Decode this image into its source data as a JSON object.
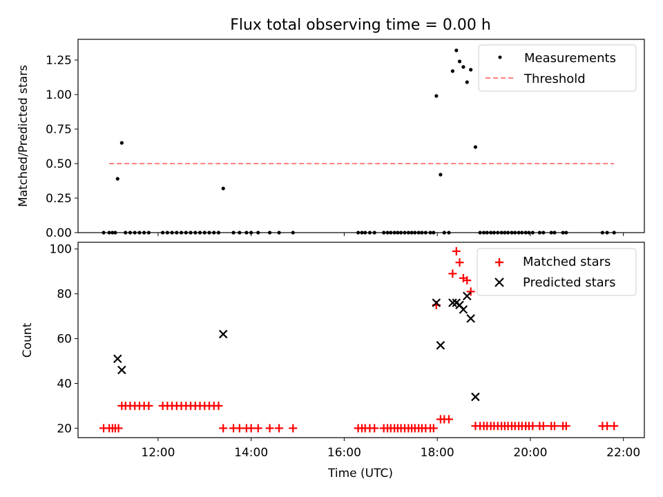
{
  "title": "Flux total observing time = 0.00 h",
  "xlabel": "Time (UTC)",
  "colors": {
    "matched": "#ff0000",
    "predicted": "#000000",
    "threshold": "#ff7f7f",
    "measurement": "#000000"
  },
  "chart_data": [
    {
      "type": "scatter",
      "ylabel": "Matched/Predicted stars",
      "ylim": [
        0,
        1.4
      ],
      "yticks": [
        0,
        0.25,
        0.5,
        0.75,
        1.0,
        1.25
      ],
      "yticklabels": [
        "0.00",
        "0.25",
        "0.50",
        "0.75",
        "1.00",
        "1.25"
      ],
      "xlim_hours": [
        10.28,
        22.45
      ],
      "legend": {
        "position": "top-right",
        "entries": [
          "Measurements",
          "Threshold"
        ]
      },
      "threshold": {
        "name": "Threshold",
        "value": 0.5,
        "x_range_hours": [
          10.95,
          21.8
        ]
      },
      "measurements": {
        "name": "Measurements",
        "points": [
          {
            "x": 10.83,
            "y": 0
          },
          {
            "x": 10.95,
            "y": 0
          },
          {
            "x": 11.02,
            "y": 0
          },
          {
            "x": 11.08,
            "y": 0
          },
          {
            "x": 11.13,
            "y": 0.39
          },
          {
            "x": 11.22,
            "y": 0.65
          },
          {
            "x": 11.3,
            "y": 0
          },
          {
            "x": 11.4,
            "y": 0
          },
          {
            "x": 11.5,
            "y": 0
          },
          {
            "x": 11.6,
            "y": 0
          },
          {
            "x": 11.7,
            "y": 0
          },
          {
            "x": 11.8,
            "y": 0
          },
          {
            "x": 12.1,
            "y": 0
          },
          {
            "x": 12.2,
            "y": 0
          },
          {
            "x": 12.3,
            "y": 0
          },
          {
            "x": 12.4,
            "y": 0
          },
          {
            "x": 12.5,
            "y": 0
          },
          {
            "x": 12.6,
            "y": 0
          },
          {
            "x": 12.7,
            "y": 0
          },
          {
            "x": 12.8,
            "y": 0
          },
          {
            "x": 12.9,
            "y": 0
          },
          {
            "x": 13.0,
            "y": 0
          },
          {
            "x": 13.1,
            "y": 0
          },
          {
            "x": 13.2,
            "y": 0
          },
          {
            "x": 13.3,
            "y": 0
          },
          {
            "x": 13.4,
            "y": 0.32
          },
          {
            "x": 13.62,
            "y": 0
          },
          {
            "x": 13.75,
            "y": 0
          },
          {
            "x": 13.9,
            "y": 0
          },
          {
            "x": 14.0,
            "y": 0
          },
          {
            "x": 14.15,
            "y": 0
          },
          {
            "x": 14.4,
            "y": 0
          },
          {
            "x": 14.6,
            "y": 0
          },
          {
            "x": 14.9,
            "y": 0
          },
          {
            "x": 16.3,
            "y": 0
          },
          {
            "x": 16.38,
            "y": 0
          },
          {
            "x": 16.45,
            "y": 0
          },
          {
            "x": 16.55,
            "y": 0
          },
          {
            "x": 16.65,
            "y": 0
          },
          {
            "x": 16.85,
            "y": 0
          },
          {
            "x": 16.93,
            "y": 0
          },
          {
            "x": 17.0,
            "y": 0
          },
          {
            "x": 17.08,
            "y": 0
          },
          {
            "x": 17.15,
            "y": 0
          },
          {
            "x": 17.22,
            "y": 0
          },
          {
            "x": 17.3,
            "y": 0
          },
          {
            "x": 17.38,
            "y": 0
          },
          {
            "x": 17.45,
            "y": 0
          },
          {
            "x": 17.52,
            "y": 0
          },
          {
            "x": 17.6,
            "y": 0
          },
          {
            "x": 17.67,
            "y": 0
          },
          {
            "x": 17.75,
            "y": 0
          },
          {
            "x": 17.85,
            "y": 0
          },
          {
            "x": 17.92,
            "y": 0
          },
          {
            "x": 17.98,
            "y": 0.99
          },
          {
            "x": 18.07,
            "y": 0.42
          },
          {
            "x": 18.15,
            "y": 0
          },
          {
            "x": 18.25,
            "y": 0
          },
          {
            "x": 18.33,
            "y": 1.17
          },
          {
            "x": 18.41,
            "y": 1.32
          },
          {
            "x": 18.48,
            "y": 1.24
          },
          {
            "x": 18.56,
            "y": 1.2
          },
          {
            "x": 18.64,
            "y": 1.09
          },
          {
            "x": 18.72,
            "y": 1.18
          },
          {
            "x": 18.82,
            "y": 0.62
          },
          {
            "x": 18.92,
            "y": 0
          },
          {
            "x": 19.0,
            "y": 0
          },
          {
            "x": 19.07,
            "y": 0
          },
          {
            "x": 19.15,
            "y": 0
          },
          {
            "x": 19.22,
            "y": 0
          },
          {
            "x": 19.3,
            "y": 0
          },
          {
            "x": 19.38,
            "y": 0
          },
          {
            "x": 19.45,
            "y": 0
          },
          {
            "x": 19.52,
            "y": 0
          },
          {
            "x": 19.6,
            "y": 0
          },
          {
            "x": 19.67,
            "y": 0
          },
          {
            "x": 19.75,
            "y": 0
          },
          {
            "x": 19.82,
            "y": 0
          },
          {
            "x": 19.9,
            "y": 0
          },
          {
            "x": 19.97,
            "y": 0
          },
          {
            "x": 20.05,
            "y": 0
          },
          {
            "x": 20.2,
            "y": 0
          },
          {
            "x": 20.28,
            "y": 0
          },
          {
            "x": 20.45,
            "y": 0
          },
          {
            "x": 20.52,
            "y": 0
          },
          {
            "x": 20.7,
            "y": 0
          },
          {
            "x": 20.77,
            "y": 0
          },
          {
            "x": 21.55,
            "y": 0
          },
          {
            "x": 21.65,
            "y": 0
          },
          {
            "x": 21.8,
            "y": 0
          }
        ]
      }
    },
    {
      "type": "scatter",
      "ylabel": "Count",
      "ylim": [
        15.8,
        103
      ],
      "yticks": [
        20,
        40,
        60,
        80,
        100
      ],
      "yticklabels": [
        "20",
        "40",
        "60",
        "80",
        "100"
      ],
      "xlim_hours": [
        10.28,
        22.45
      ],
      "xticks_hours": [
        12,
        14,
        16,
        18,
        20,
        22
      ],
      "xticklabels": [
        "12:00",
        "14:00",
        "16:00",
        "18:00",
        "20:00",
        "22:00"
      ],
      "legend": {
        "position": "top-right",
        "entries": [
          "Matched stars",
          "Predicted stars"
        ]
      },
      "series": [
        {
          "name": "Matched stars",
          "marker": "plus",
          "points": [
            {
              "x": 10.83,
              "y": 20
            },
            {
              "x": 10.95,
              "y": 20
            },
            {
              "x": 11.02,
              "y": 20
            },
            {
              "x": 11.08,
              "y": 20
            },
            {
              "x": 11.15,
              "y": 20
            },
            {
              "x": 11.22,
              "y": 30
            },
            {
              "x": 11.3,
              "y": 30
            },
            {
              "x": 11.4,
              "y": 30
            },
            {
              "x": 11.5,
              "y": 30
            },
            {
              "x": 11.6,
              "y": 30
            },
            {
              "x": 11.7,
              "y": 30
            },
            {
              "x": 11.8,
              "y": 30
            },
            {
              "x": 12.1,
              "y": 30
            },
            {
              "x": 12.2,
              "y": 30
            },
            {
              "x": 12.3,
              "y": 30
            },
            {
              "x": 12.4,
              "y": 30
            },
            {
              "x": 12.5,
              "y": 30
            },
            {
              "x": 12.6,
              "y": 30
            },
            {
              "x": 12.7,
              "y": 30
            },
            {
              "x": 12.8,
              "y": 30
            },
            {
              "x": 12.9,
              "y": 30
            },
            {
              "x": 13.0,
              "y": 30
            },
            {
              "x": 13.1,
              "y": 30
            },
            {
              "x": 13.2,
              "y": 30
            },
            {
              "x": 13.3,
              "y": 30
            },
            {
              "x": 13.4,
              "y": 20
            },
            {
              "x": 13.62,
              "y": 20
            },
            {
              "x": 13.75,
              "y": 20
            },
            {
              "x": 13.9,
              "y": 20
            },
            {
              "x": 14.0,
              "y": 20
            },
            {
              "x": 14.15,
              "y": 20
            },
            {
              "x": 14.4,
              "y": 20
            },
            {
              "x": 14.6,
              "y": 20
            },
            {
              "x": 14.9,
              "y": 20
            },
            {
              "x": 16.3,
              "y": 20
            },
            {
              "x": 16.38,
              "y": 20
            },
            {
              "x": 16.45,
              "y": 20
            },
            {
              "x": 16.55,
              "y": 20
            },
            {
              "x": 16.65,
              "y": 20
            },
            {
              "x": 16.85,
              "y": 20
            },
            {
              "x": 16.93,
              "y": 20
            },
            {
              "x": 17.0,
              "y": 20
            },
            {
              "x": 17.08,
              "y": 20
            },
            {
              "x": 17.15,
              "y": 20
            },
            {
              "x": 17.22,
              "y": 20
            },
            {
              "x": 17.3,
              "y": 20
            },
            {
              "x": 17.38,
              "y": 20
            },
            {
              "x": 17.45,
              "y": 20
            },
            {
              "x": 17.52,
              "y": 20
            },
            {
              "x": 17.6,
              "y": 20
            },
            {
              "x": 17.67,
              "y": 20
            },
            {
              "x": 17.75,
              "y": 20
            },
            {
              "x": 17.85,
              "y": 20
            },
            {
              "x": 17.92,
              "y": 20
            },
            {
              "x": 17.98,
              "y": 75
            },
            {
              "x": 18.07,
              "y": 24
            },
            {
              "x": 18.15,
              "y": 24
            },
            {
              "x": 18.25,
              "y": 24
            },
            {
              "x": 18.33,
              "y": 89
            },
            {
              "x": 18.41,
              "y": 99
            },
            {
              "x": 18.48,
              "y": 94
            },
            {
              "x": 18.56,
              "y": 87
            },
            {
              "x": 18.64,
              "y": 86
            },
            {
              "x": 18.72,
              "y": 81
            },
            {
              "x": 18.82,
              "y": 21
            },
            {
              "x": 18.92,
              "y": 21
            },
            {
              "x": 19.0,
              "y": 21
            },
            {
              "x": 19.07,
              "y": 21
            },
            {
              "x": 19.15,
              "y": 21
            },
            {
              "x": 19.22,
              "y": 21
            },
            {
              "x": 19.3,
              "y": 21
            },
            {
              "x": 19.38,
              "y": 21
            },
            {
              "x": 19.45,
              "y": 21
            },
            {
              "x": 19.52,
              "y": 21
            },
            {
              "x": 19.6,
              "y": 21
            },
            {
              "x": 19.67,
              "y": 21
            },
            {
              "x": 19.75,
              "y": 21
            },
            {
              "x": 19.82,
              "y": 21
            },
            {
              "x": 19.9,
              "y": 21
            },
            {
              "x": 19.97,
              "y": 21
            },
            {
              "x": 20.05,
              "y": 21
            },
            {
              "x": 20.2,
              "y": 21
            },
            {
              "x": 20.28,
              "y": 21
            },
            {
              "x": 20.45,
              "y": 21
            },
            {
              "x": 20.52,
              "y": 21
            },
            {
              "x": 20.7,
              "y": 21
            },
            {
              "x": 20.77,
              "y": 21
            },
            {
              "x": 21.55,
              "y": 21
            },
            {
              "x": 21.65,
              "y": 21
            },
            {
              "x": 21.8,
              "y": 21
            }
          ]
        },
        {
          "name": "Predicted stars",
          "marker": "x",
          "points": [
            {
              "x": 11.13,
              "y": 51
            },
            {
              "x": 11.22,
              "y": 46
            },
            {
              "x": 13.4,
              "y": 62
            },
            {
              "x": 17.98,
              "y": 76
            },
            {
              "x": 18.07,
              "y": 57
            },
            {
              "x": 18.33,
              "y": 76
            },
            {
              "x": 18.41,
              "y": 76
            },
            {
              "x": 18.48,
              "y": 75
            },
            {
              "x": 18.56,
              "y": 73
            },
            {
              "x": 18.64,
              "y": 79
            },
            {
              "x": 18.72,
              "y": 69
            },
            {
              "x": 18.82,
              "y": 34
            }
          ]
        }
      ]
    }
  ]
}
